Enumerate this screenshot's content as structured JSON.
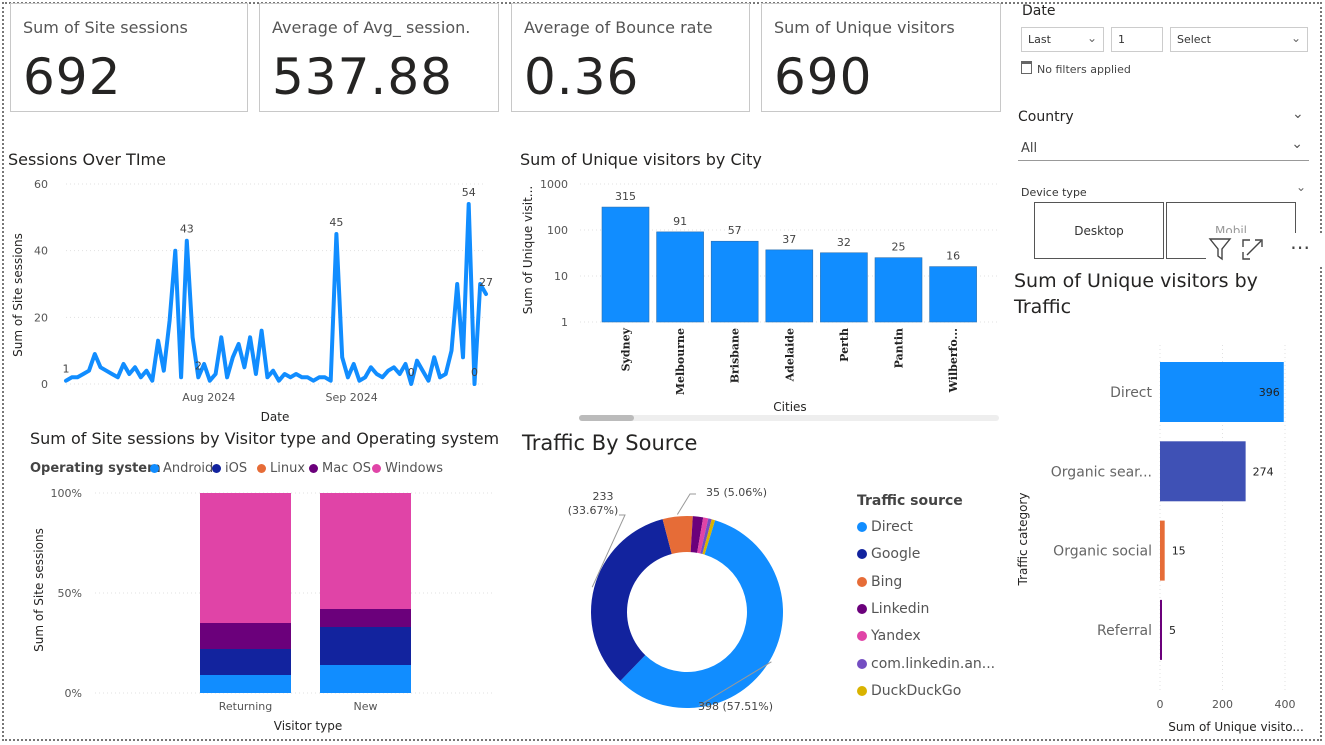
{
  "cards": [
    {
      "label": "Sum of Site sessions",
      "value": "692"
    },
    {
      "label": "Average of Avg_ session...",
      "value": "537.88"
    },
    {
      "label": "Average of Bounce rate",
      "value": "0.36"
    },
    {
      "label": "Sum of Unique visitors",
      "value": "690"
    }
  ],
  "filters": {
    "date": {
      "title": "Date",
      "period": "Last",
      "count": "1",
      "unit": "Select",
      "status": "No filters applied"
    },
    "country": {
      "title": "Country",
      "value": "All"
    },
    "device": {
      "title": "Device type",
      "options": [
        "Desktop",
        "Mobil"
      ]
    }
  },
  "visual_toolbar": {
    "icons": [
      "filter-icon",
      "focus-mode-icon",
      "more-options-icon"
    ],
    "more": "⋯"
  },
  "chart_data": [
    {
      "type": "line",
      "title": "Sessions Over TIme",
      "xlabel": "Date",
      "ylabel": "Sum of Site sessions",
      "ylim": [
        0,
        60
      ],
      "yticks": [
        "0",
        "20",
        "40",
        "60"
      ],
      "xticks": [
        "Aug 2024",
        "Sep 2024"
      ],
      "color": "#118DFF",
      "values": [
        1,
        2,
        2,
        3,
        4,
        9,
        5,
        4,
        3,
        2,
        6,
        3,
        5,
        2,
        4,
        1,
        13,
        4,
        19,
        40,
        2,
        43,
        14,
        2,
        6,
        1,
        3,
        14,
        2,
        8,
        12,
        5,
        14,
        3,
        16,
        2,
        4,
        1,
        3,
        2,
        3,
        2,
        2,
        1,
        2,
        2,
        1,
        45,
        8,
        2,
        6,
        1,
        2,
        5,
        3,
        2,
        4,
        5,
        3,
        6,
        0,
        7,
        4,
        1,
        8,
        2,
        3,
        10,
        30,
        8,
        54,
        0,
        30,
        27
      ],
      "point_labels": [
        {
          "index": 0,
          "text": "1"
        },
        {
          "index": 21,
          "text": "43"
        },
        {
          "index": 23,
          "text": "2"
        },
        {
          "index": 47,
          "text": "45"
        },
        {
          "index": 60,
          "text": "0"
        },
        {
          "index": 70,
          "text": "54"
        },
        {
          "index": 71,
          "text": "0"
        },
        {
          "index": 73,
          "text": "27"
        }
      ]
    },
    {
      "type": "bar",
      "title": "Sum of Unique visitors by City",
      "xlabel": "Cities",
      "ylabel": "Sum of Unique visit...",
      "scale": "log",
      "yticks": [
        "1",
        "10",
        "100",
        "1000"
      ],
      "color": "#118DFF",
      "categories": [
        "Sydney",
        "Melbourne",
        "Brisbane",
        "Adelaide",
        "Perth",
        "Pantin",
        "Wilberfo..."
      ],
      "values": [
        315,
        91,
        57,
        37,
        32,
        25,
        16
      ]
    },
    {
      "type": "bar",
      "stacked": "100%",
      "title": "Sum of Site sessions by Visitor type and Operating system",
      "xlabel": "Visitor type",
      "ylabel": "Sum of Site sessions",
      "legend_title": "Operating system",
      "yticks": [
        "0%",
        "50%",
        "100%"
      ],
      "categories": [
        "Returning",
        "New"
      ],
      "series": [
        {
          "name": "Android",
          "color": "#118DFF",
          "values": [
            0.09,
            0.14
          ]
        },
        {
          "name": "iOS",
          "color": "#12239E",
          "values": [
            0.13,
            0.19
          ]
        },
        {
          "name": "Linux",
          "color": "#E66C37",
          "values": [
            0.0,
            0.0
          ]
        },
        {
          "name": "Mac OS",
          "color": "#6B007B",
          "values": [
            0.13,
            0.09
          ]
        },
        {
          "name": "Windows",
          "color": "#E044A7",
          "values": [
            0.65,
            0.58
          ]
        }
      ]
    },
    {
      "type": "pie",
      "donut": true,
      "title": "Traffic By Source",
      "legend_title": "Traffic source",
      "slices": [
        {
          "name": "Direct",
          "value": 398,
          "color": "#118DFF",
          "label": "398 (57.51%)"
        },
        {
          "name": "Google",
          "value": 233,
          "color": "#12239E",
          "label": "233 (33.67%)"
        },
        {
          "name": "Bing",
          "value": 35,
          "color": "#E66C37",
          "label": "35 (5.06%)"
        },
        {
          "name": "Linkedin",
          "value": 12,
          "color": "#6B007B"
        },
        {
          "name": "Yandex",
          "value": 6,
          "color": "#E044A7"
        },
        {
          "name": "com.linkedin.an...",
          "value": 4,
          "color": "#744EC2"
        },
        {
          "name": "DuckDuckGo",
          "value": 4,
          "color": "#D9B300"
        }
      ]
    },
    {
      "type": "bar",
      "orientation": "horizontal",
      "title": "Sum of Unique visitors by Traffic",
      "xlabel": "Sum of Unique visito...",
      "ylabel": "Traffic category",
      "xlim": [
        0,
        400
      ],
      "xticks": [
        "0",
        "200",
        "400"
      ],
      "categories": [
        "Direct",
        "Organic sear...",
        "Organic social",
        "Referral"
      ],
      "values": [
        396,
        274,
        15,
        5
      ],
      "colors": [
        "#118DFF",
        "#3F51B5",
        "#E66C37",
        "#6B007B"
      ]
    }
  ]
}
